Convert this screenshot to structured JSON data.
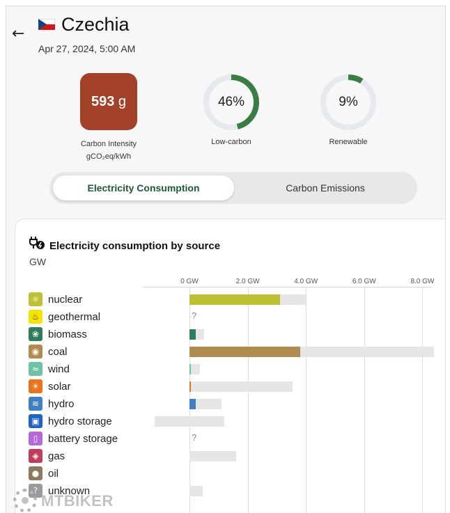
{
  "header": {
    "country": "Czechia",
    "datetime": "Apr 27, 2024, 5:00 AM",
    "back_icon": "arrow-left-icon",
    "flag_icon": "czech-flag-icon"
  },
  "metrics": {
    "carbon_intensity": {
      "value": "593",
      "unit": "g",
      "label_line1": "Carbon Intensity",
      "label_line2": "gCO₂eq/kWh",
      "color": "#a34028"
    },
    "low_carbon": {
      "value": "46%",
      "fraction": 0.46,
      "label": "Low-carbon",
      "color": "#3a7d44"
    },
    "renewable": {
      "value": "9%",
      "fraction": 0.09,
      "label": "Renewable",
      "color": "#3a7d44"
    }
  },
  "tabs": {
    "consumption": "Electricity Consumption",
    "emissions": "Carbon Emissions",
    "active": "consumption"
  },
  "panel": {
    "title": "Electricity consumption by source",
    "unit": "GW",
    "title_icon": "plug-bolt-icon"
  },
  "chart_data": {
    "type": "bar",
    "title": "Electricity consumption by source",
    "ylabel": "GW",
    "xlim": [
      -1.2,
      8.4
    ],
    "ticks": [
      "0 GW",
      "2.0 GW",
      "4.0 GW",
      "6.0 GW",
      "8.0 GW"
    ],
    "tick_values": [
      0,
      2,
      4,
      6,
      8
    ],
    "categories": [
      "nuclear",
      "geothermal",
      "biomass",
      "coal",
      "wind",
      "solar",
      "hydro",
      "hydro storage",
      "battery storage",
      "gas",
      "oil",
      "unknown"
    ],
    "series": [
      {
        "values": [
          3.1,
          null,
          0.22,
          3.8,
          0.04,
          0.02,
          0.22,
          0,
          null,
          0,
          0,
          0
        ]
      },
      {
        "values": [
          4.0,
          null,
          0.5,
          8.4,
          0.35,
          3.55,
          1.1,
          1.2,
          null,
          1.6,
          0,
          0.45
        ]
      }
    ],
    "capacity_min": [
      0,
      null,
      0,
      0,
      0,
      0,
      0,
      -1.2,
      null,
      0,
      0,
      0
    ],
    "missing_marker": "?",
    "colors": {
      "nuclear": "#bcc233",
      "geothermal": "#f5e400",
      "biomass": "#2e7d5b",
      "coal": "#b08b4e",
      "wind": "#6cc3a6",
      "solar": "#e8731a",
      "hydro": "#3f7fc4",
      "hydro storage": "#1e63c6",
      "battery storage": "#b36ad6",
      "gas": "#c23b5b",
      "oil": "#8a7b5c",
      "unknown": "#9a9a9a",
      "capacity": "#e6e6e6"
    },
    "icons": {
      "nuclear": "atom-icon",
      "geothermal": "heat-waves-icon",
      "biomass": "sprout-icon",
      "coal": "coal-drop-icon",
      "wind": "wind-icon",
      "solar": "sun-icon",
      "hydro": "water-waves-icon",
      "hydro storage": "dam-icon",
      "battery storage": "battery-icon",
      "gas": "flame-icon",
      "oil": "oil-drop-icon",
      "unknown": "question-icon"
    }
  },
  "watermark": {
    "text": "MTBIKER"
  }
}
